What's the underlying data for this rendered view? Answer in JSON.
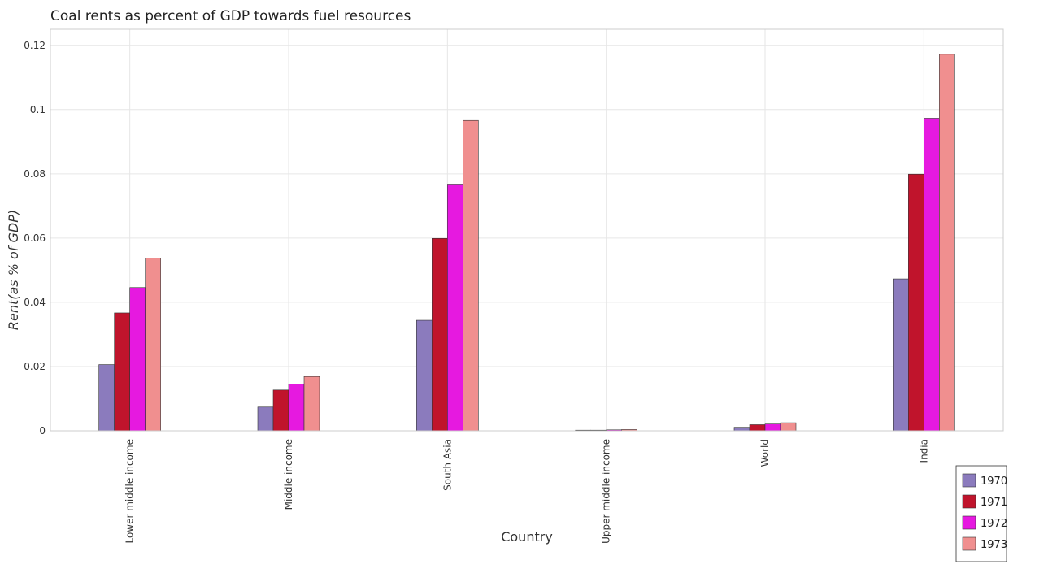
{
  "chart_data": {
    "type": "bar",
    "title": "Coal rents as percent of GDP towards fuel resources",
    "xlabel": "Country",
    "ylabel": "Rent(as % of GDP)",
    "ylim": [
      0,
      0.125
    ],
    "yticks": [
      0,
      0.02,
      0.04,
      0.06,
      0.08,
      0.1,
      0.12
    ],
    "ytick_labels": [
      "0",
      "0.02",
      "0.04",
      "0.06",
      "0.08",
      "0.1",
      "0.12"
    ],
    "grid": true,
    "legend_position": "bottom-right",
    "categories": [
      "Lower middle income",
      "Middle income",
      "South Asia",
      "Upper middle income",
      "World",
      "India"
    ],
    "series": [
      {
        "name": "1970",
        "color": "#8b7bbd",
        "values": [
          0.0206,
          0.0074,
          0.0344,
          0.0002,
          0.0011,
          0.0473
        ]
      },
      {
        "name": "1971",
        "color": "#c0142c",
        "values": [
          0.0367,
          0.0127,
          0.0599,
          0.0002,
          0.0019,
          0.0799
        ]
      },
      {
        "name": "1972",
        "color": "#e619e0",
        "values": [
          0.0446,
          0.0146,
          0.0768,
          0.0003,
          0.0021,
          0.0973
        ]
      },
      {
        "name": "1973",
        "color": "#f08f8f",
        "values": [
          0.0538,
          0.0169,
          0.0966,
          0.0004,
          0.0025,
          0.1172
        ]
      }
    ]
  }
}
